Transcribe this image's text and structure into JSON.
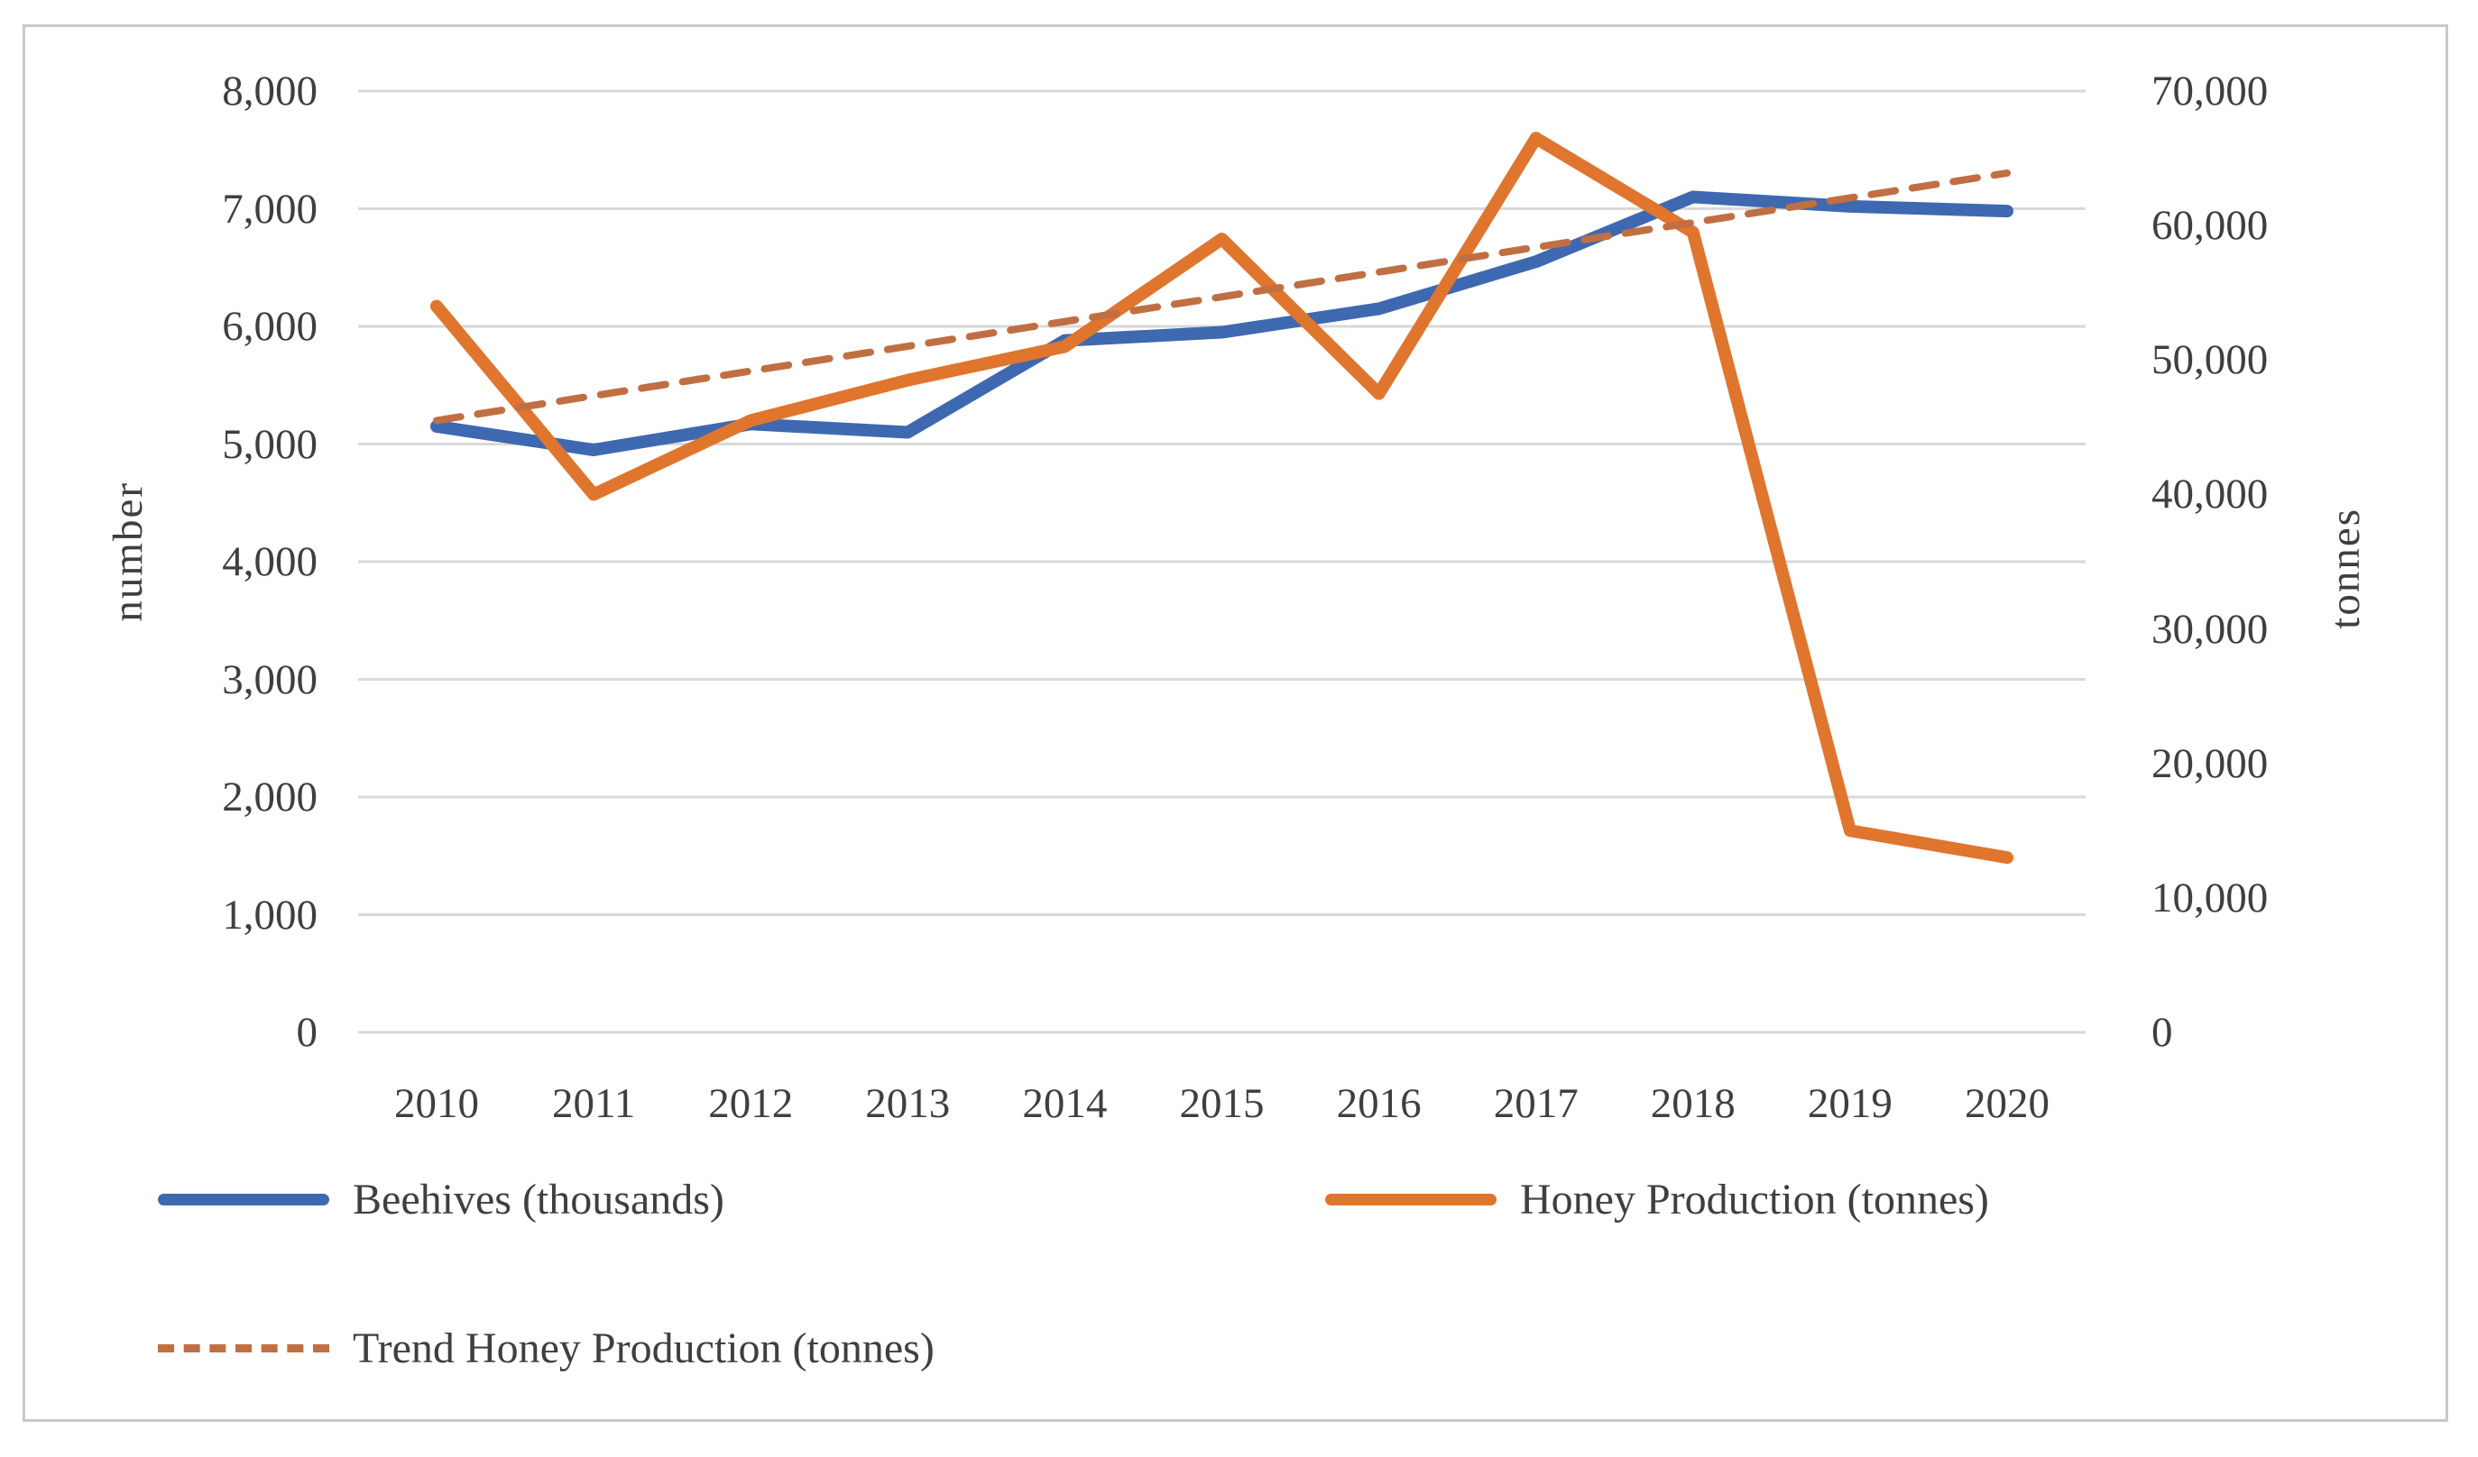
{
  "figure": {
    "border_color": "#c9c9c9",
    "background": "#ffffff",
    "text_color": "#3f3f3f",
    "grid_color": "#d9d9d9"
  },
  "chart_data": {
    "type": "line",
    "title": "",
    "x": [
      "2010",
      "2011",
      "2012",
      "2013",
      "2014",
      "2015",
      "2016",
      "2017",
      "2018",
      "2019",
      "2020"
    ],
    "series": [
      {
        "name": "Beehives (thousands)",
        "axis": "left",
        "color": "#3e69b0",
        "style": "solid",
        "values": [
          5150,
          4950,
          5170,
          5100,
          5880,
          5950,
          6150,
          6550,
          7100,
          7020,
          6980
        ]
      },
      {
        "name": "Honey Production (tonnes)",
        "axis": "right",
        "color": "#e0752e",
        "style": "solid",
        "values": [
          54000,
          40000,
          45500,
          48500,
          51000,
          59000,
          47500,
          66500,
          59500,
          15000,
          13000
        ]
      },
      {
        "name": "Trend Honey Production (tonnes)",
        "axis": "right",
        "color": "#c06f43",
        "style": "dashed",
        "values": [
          45500,
          47340,
          49180,
          51020,
          52860,
          54700,
          56540,
          58380,
          60220,
          62060,
          63900
        ]
      }
    ],
    "left_axis": {
      "title": "number",
      "min": 0,
      "max": 8000,
      "tick_step": 1000,
      "tick_labels": [
        "0",
        "1,000",
        "2,000",
        "3,000",
        "4,000",
        "5,000",
        "6,000",
        "7,000",
        "8,000"
      ]
    },
    "right_axis": {
      "title": "tonnes",
      "min": 0,
      "max": 70000,
      "tick_step": 10000,
      "tick_labels": [
        "0",
        "10,000",
        "20,000",
        "30,000",
        "40,000",
        "50,000",
        "60,000",
        "70,000"
      ]
    },
    "grid": true,
    "legend_position": "bottom-left"
  }
}
